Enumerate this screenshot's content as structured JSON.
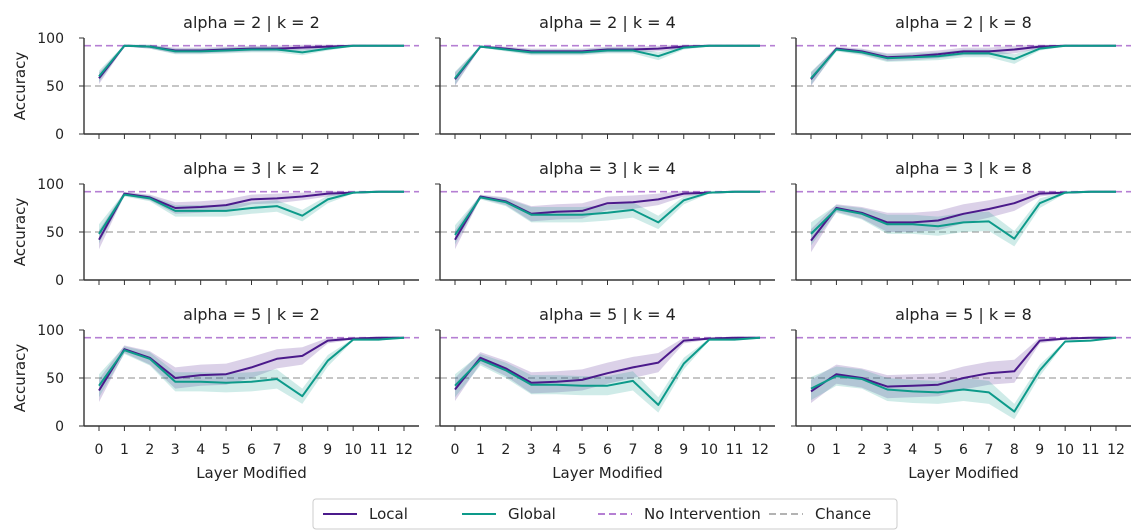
{
  "chart_data": {
    "type": "line",
    "x": [
      0,
      1,
      2,
      3,
      4,
      5,
      6,
      7,
      8,
      9,
      10,
      11,
      12
    ],
    "xlabel": "Layer Modified",
    "ylabel": "Accuracy",
    "ylim": [
      0,
      100
    ],
    "yticks": [
      0,
      50,
      100
    ],
    "grid": false,
    "legend_position": "bottom-center",
    "colors": {
      "local": "#4b1a8b",
      "global": "#0d9a8a",
      "no_intervention": "#b57fd3",
      "chance": "#b3b3b3"
    },
    "reference_lines": [
      {
        "name": "No Intervention",
        "y": 92,
        "style": "dashed",
        "color": "#b57fd3"
      },
      {
        "name": "Chance",
        "y": 50,
        "style": "dashed",
        "color": "#b3b3b3"
      }
    ],
    "legend": [
      {
        "label": "Local",
        "color": "#4b1a8b",
        "style": "solid"
      },
      {
        "label": "Global",
        "color": "#0d9a8a",
        "style": "solid"
      },
      {
        "label": "No Intervention",
        "color": "#b57fd3",
        "style": "dashed"
      },
      {
        "label": "Chance",
        "color": "#b3b3b3",
        "style": "dashed"
      }
    ],
    "panels": [
      {
        "title": "alpha = 2 | k = 2",
        "series": [
          {
            "name": "Local",
            "values": [
              58,
              92,
              91,
              87,
              87,
              88,
              89,
              89,
              90,
              91,
              92,
              92,
              92
            ],
            "spread": [
              6,
              1,
              2,
              3,
              3,
              3,
              3,
              3,
              3,
              2,
              1,
              1,
              1
            ]
          },
          {
            "name": "Global",
            "values": [
              60,
              92,
              91,
              86,
              86,
              87,
              88,
              88,
              85,
              89,
              92,
              92,
              92
            ],
            "spread": [
              6,
              1,
              2,
              3,
              3,
              3,
              3,
              3,
              3,
              2,
              1,
              1,
              1
            ]
          }
        ]
      },
      {
        "title": "alpha = 2 | k = 4",
        "series": [
          {
            "name": "Local",
            "values": [
              57,
              91,
              89,
              86,
              86,
              86,
              88,
              88,
              89,
              91,
              92,
              92,
              92
            ],
            "spread": [
              7,
              1,
              2,
              3,
              3,
              3,
              3,
              3,
              3,
              2,
              1,
              1,
              1
            ]
          },
          {
            "name": "Global",
            "values": [
              58,
              91,
              88,
              85,
              85,
              85,
              87,
              87,
              81,
              90,
              92,
              92,
              92
            ],
            "spread": [
              7,
              1,
              2,
              3,
              3,
              3,
              3,
              3,
              4,
              2,
              1,
              1,
              1
            ]
          }
        ]
      },
      {
        "title": "alpha = 2 | k = 8",
        "series": [
          {
            "name": "Local",
            "values": [
              57,
              89,
              86,
              80,
              81,
              83,
              86,
              86,
              88,
              91,
              92,
              92,
              92
            ],
            "spread": [
              7,
              2,
              3,
              4,
              4,
              4,
              4,
              4,
              4,
              2,
              1,
              1,
              1
            ]
          },
          {
            "name": "Global",
            "values": [
              58,
              88,
              85,
              79,
              80,
              81,
              84,
              84,
              78,
              89,
              92,
              92,
              92
            ],
            "spread": [
              7,
              2,
              3,
              4,
              4,
              4,
              4,
              4,
              5,
              2,
              1,
              1,
              1
            ]
          }
        ]
      },
      {
        "title": "alpha = 3 | k = 2",
        "series": [
          {
            "name": "Local",
            "values": [
              42,
              90,
              86,
              75,
              76,
              78,
              84,
              85,
              87,
              90,
              91,
              92,
              92
            ],
            "spread": [
              10,
              2,
              3,
              6,
              6,
              6,
              5,
              5,
              4,
              3,
              1,
              1,
              1
            ]
          },
          {
            "name": "Global",
            "values": [
              48,
              89,
              85,
              72,
              72,
              72,
              75,
              77,
              67,
              84,
              91,
              92,
              92
            ],
            "spread": [
              10,
              2,
              3,
              6,
              6,
              6,
              6,
              6,
              6,
              4,
              1,
              1,
              1
            ]
          }
        ]
      },
      {
        "title": "alpha = 3 | k = 4",
        "series": [
          {
            "name": "Local",
            "values": [
              42,
              87,
              82,
              69,
              71,
              72,
              80,
              81,
              84,
              90,
              91,
              92,
              92
            ],
            "spread": [
              10,
              2,
              4,
              8,
              8,
              8,
              7,
              7,
              6,
              3,
              1,
              1,
              1
            ]
          },
          {
            "name": "Global",
            "values": [
              47,
              86,
              81,
              68,
              68,
              68,
              70,
              73,
              60,
              83,
              91,
              92,
              92
            ],
            "spread": [
              10,
              2,
              4,
              8,
              8,
              8,
              8,
              8,
              7,
              4,
              1,
              1,
              1
            ]
          }
        ]
      },
      {
        "title": "alpha = 3 | k = 8",
        "series": [
          {
            "name": "Local",
            "values": [
              41,
              75,
              70,
              60,
              60,
              62,
              69,
              74,
              80,
              90,
              91,
              92,
              92
            ],
            "spread": [
              12,
              4,
              6,
              10,
              10,
              10,
              10,
              9,
              8,
              3,
              1,
              1,
              1
            ]
          },
          {
            "name": "Global",
            "values": [
              48,
              74,
              69,
              58,
              58,
              56,
              60,
              61,
              43,
              80,
              91,
              92,
              92
            ],
            "spread": [
              12,
              4,
              6,
              10,
              10,
              10,
              10,
              10,
              8,
              5,
              1,
              1,
              1
            ]
          }
        ]
      },
      {
        "title": "alpha = 5 | k = 2",
        "series": [
          {
            "name": "Local",
            "values": [
              37,
              80,
              71,
              50,
              53,
              54,
              61,
              70,
              73,
              89,
              91,
              92,
              92
            ],
            "spread": [
              12,
              4,
              7,
              11,
              11,
              11,
              11,
              10,
              9,
              3,
              1,
              1,
              1
            ]
          },
          {
            "name": "Global",
            "values": [
              42,
              79,
              70,
              46,
              46,
              45,
              46,
              49,
              31,
              68,
              90,
              90,
              92
            ],
            "spread": [
              12,
              4,
              7,
              10,
              10,
              10,
              10,
              10,
              8,
              6,
              1,
              1,
              1
            ]
          }
        ]
      },
      {
        "title": "alpha = 5 | k = 4",
        "series": [
          {
            "name": "Local",
            "values": [
              38,
              71,
              60,
              45,
              46,
              48,
              55,
              61,
              66,
              89,
              91,
              92,
              92
            ],
            "spread": [
              12,
              6,
              8,
              11,
              11,
              11,
              11,
              11,
              10,
              3,
              1,
              1,
              1
            ]
          },
          {
            "name": "Global",
            "values": [
              42,
              69,
              58,
              43,
              43,
              42,
              42,
              47,
              22,
              65,
              90,
              90,
              92
            ],
            "spread": [
              12,
              6,
              8,
              10,
              10,
              10,
              10,
              10,
              8,
              6,
              1,
              1,
              1
            ]
          }
        ]
      },
      {
        "title": "alpha = 5 | k = 8",
        "series": [
          {
            "name": "Local",
            "values": [
              36,
              54,
              50,
              41,
              42,
              43,
              50,
              55,
              57,
              89,
              91,
              92,
              92
            ],
            "spread": [
              12,
              10,
              10,
              12,
              12,
              12,
              12,
              12,
              12,
              3,
              1,
              1,
              1
            ]
          },
          {
            "name": "Global",
            "values": [
              39,
              52,
              49,
              38,
              36,
              35,
              38,
              35,
              15,
              58,
              88,
              89,
              92
            ],
            "spread": [
              12,
              10,
              10,
              12,
              12,
              12,
              12,
              12,
              8,
              6,
              1,
              1,
              1
            ]
          }
        ]
      }
    ]
  }
}
